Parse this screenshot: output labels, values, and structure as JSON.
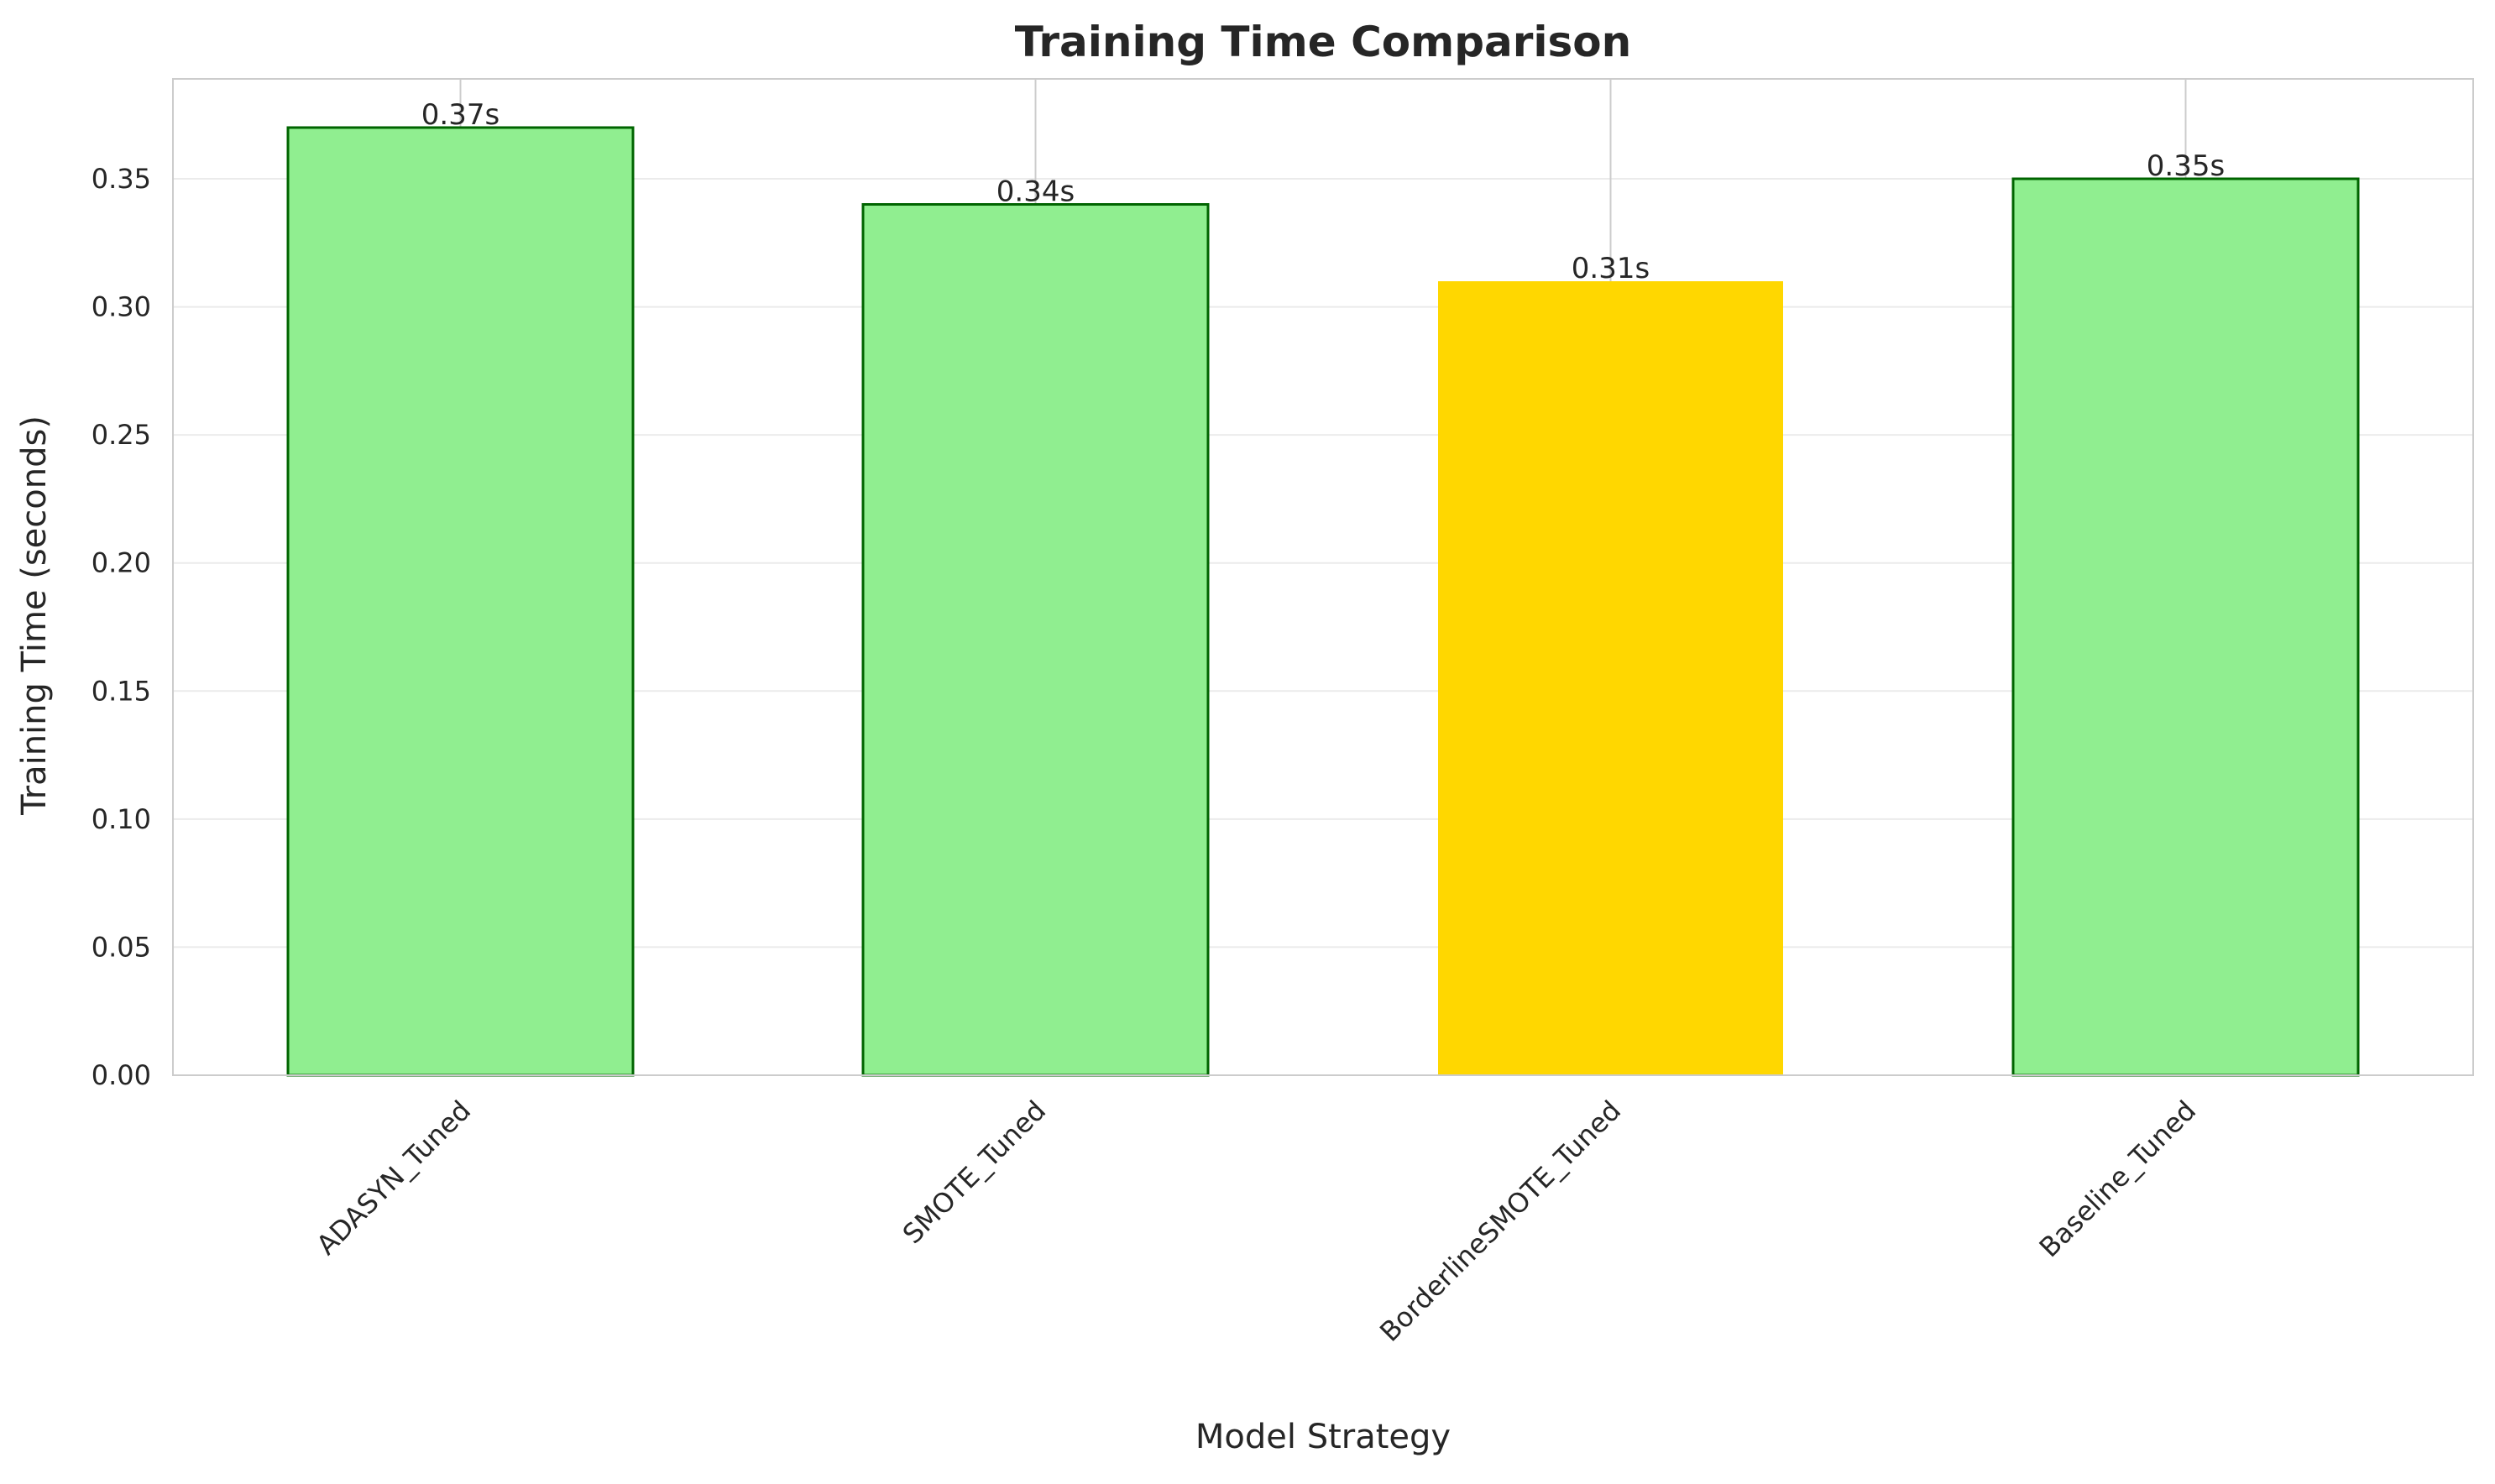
{
  "chart_data": {
    "type": "bar",
    "title": "Training Time Comparison",
    "xlabel": "Model Strategy",
    "ylabel": "Training Time (seconds)",
    "categories": [
      "ADASYN_Tuned",
      "SMOTE_Tuned",
      "BorderlineSMOTE_Tuned",
      "Baseline_Tuned"
    ],
    "values": [
      0.37,
      0.34,
      0.31,
      0.35
    ],
    "value_labels": [
      "0.37s",
      "0.34s",
      "0.31s",
      "0.35s"
    ],
    "ylim": [
      0,
      0.389
    ],
    "yticks": [
      0.0,
      0.05,
      0.1,
      0.15,
      0.2,
      0.25,
      0.3,
      0.35
    ],
    "ytick_labels": [
      "0.00",
      "0.05",
      "0.10",
      "0.15",
      "0.20",
      "0.25",
      "0.30",
      "0.35"
    ],
    "grid": true,
    "highlight_index": 2,
    "colors": {
      "bar_fill": "#90ee90",
      "bar_edge": "#006400",
      "highlight_fill": "#ffd700",
      "grid": "#ebebeb",
      "frame": "#cccccc"
    }
  }
}
